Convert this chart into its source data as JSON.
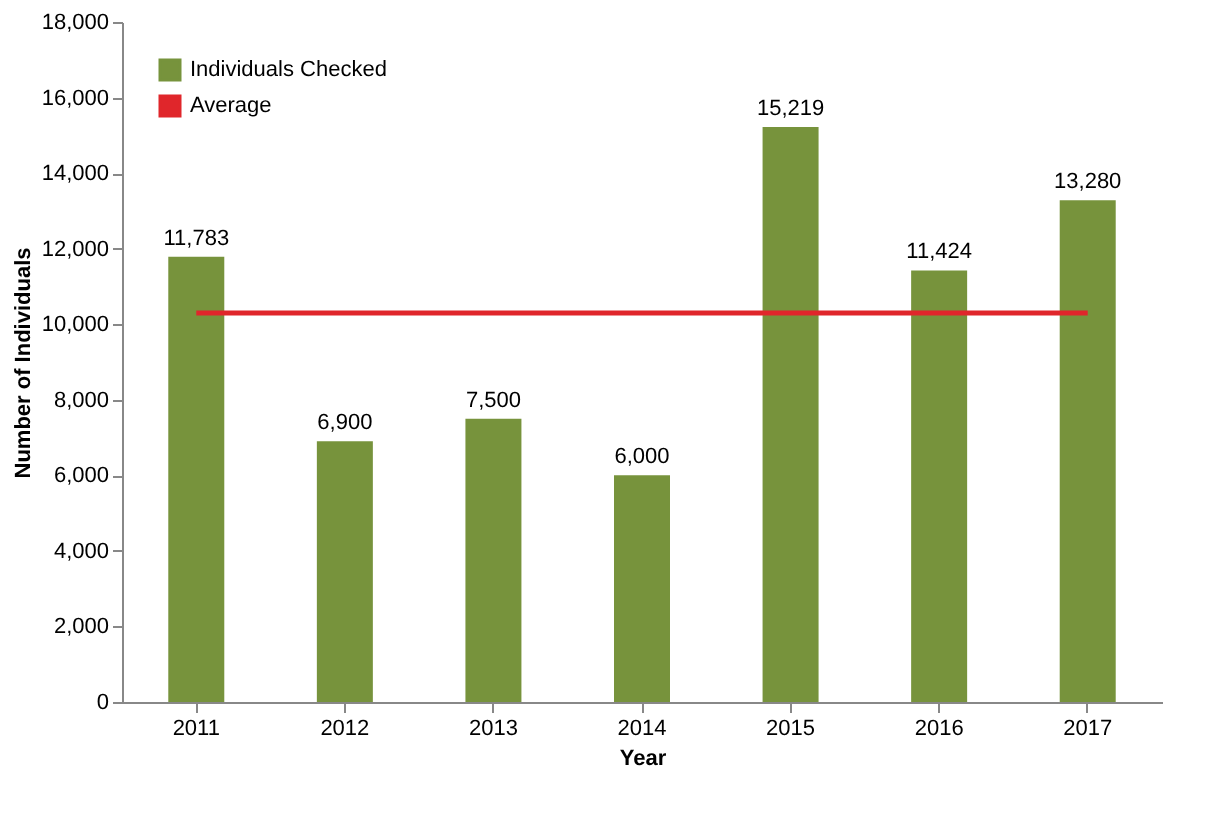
{
  "chart_data": {
    "type": "bar",
    "xlabel": "Year",
    "ylabel": "Number of Individuals",
    "categories": [
      "2011",
      "2012",
      "2013",
      "2014",
      "2015",
      "2016",
      "2017"
    ],
    "series": [
      {
        "name": "Individuals Checked",
        "color": "#77933c",
        "values": [
          11783,
          6900,
          7500,
          6000,
          15219,
          11424,
          13280
        ],
        "value_labels": [
          "11,783",
          "6,900",
          "7,500",
          "6,000",
          "15,219",
          "11,424",
          "13,280"
        ]
      },
      {
        "name": "Average",
        "type": "line",
        "color": "#e0262b",
        "values": [
          10300,
          10300,
          10300,
          10300,
          10300,
          10300,
          10300
        ]
      }
    ],
    "ylim": [
      0,
      18000
    ],
    "yticks": [
      {
        "value": 0,
        "label": "0"
      },
      {
        "value": 2000,
        "label": "2,000"
      },
      {
        "value": 4000,
        "label": "4,000"
      },
      {
        "value": 6000,
        "label": "6,000"
      },
      {
        "value": 8000,
        "label": "8,000"
      },
      {
        "value": 10000,
        "label": "10,000"
      },
      {
        "value": 12000,
        "label": "12,000"
      },
      {
        "value": 14000,
        "label": "14,000"
      },
      {
        "value": 16000,
        "label": "16,000"
      },
      {
        "value": 18000,
        "label": "18,000"
      }
    ],
    "grid": false,
    "legend": "top left"
  }
}
